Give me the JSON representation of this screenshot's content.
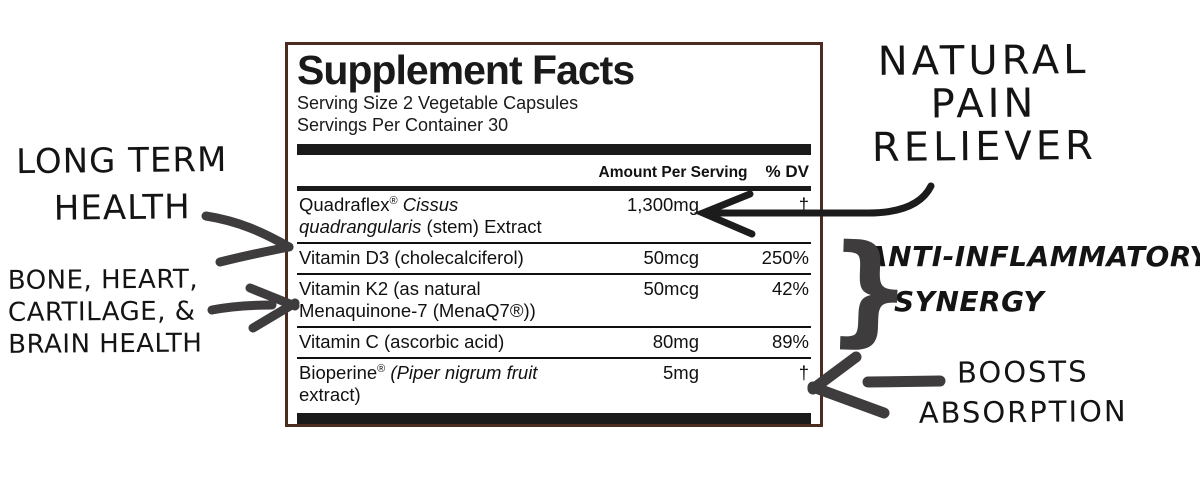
{
  "panel": {
    "title": "Supplement Facts",
    "serving_size": "Serving Size 2 Vegetable Capsules",
    "servings_per_container": "Servings Per Container 30",
    "columns": {
      "amount": "Amount Per Serving",
      "dv": "% DV"
    },
    "rows": [
      {
        "name": [
          {
            "t": "Quadraflex"
          },
          {
            "t": "®",
            "sup": true
          },
          {
            "t": " "
          },
          {
            "t": "Cissus",
            "italic": true
          },
          {
            "br": true
          },
          {
            "t": "quadrangularis",
            "italic": true
          },
          {
            "t": " (stem) Extract"
          }
        ],
        "amount": "1,300mg",
        "dv": "†"
      },
      {
        "name": [
          {
            "t": "Vitamin D3 (cholecalciferol)"
          }
        ],
        "amount": "50mcg",
        "dv": "250%"
      },
      {
        "name": [
          {
            "t": "Vitamin K2 (as natural"
          },
          {
            "br": true
          },
          {
            "t": "Menaquinone-7 (MenaQ7®))"
          }
        ],
        "amount": "50mcg",
        "dv": "42%"
      },
      {
        "name": [
          {
            "t": "Vitamin C (ascorbic acid)"
          }
        ],
        "amount": "80mg",
        "dv": "89%"
      },
      {
        "name": [
          {
            "t": "Bioperine"
          },
          {
            "t": "®",
            "sup": true
          },
          {
            "t": " (",
            "italic": true
          },
          {
            "t": "Piper nigrum fruit",
            "italic": true
          },
          {
            "br": true
          },
          {
            "t": "extract)"
          }
        ],
        "amount": "5mg",
        "dv": "†"
      }
    ]
  },
  "annotations": {
    "long_term_health": {
      "lines": [
        "LONG TERM",
        "HEALTH"
      ]
    },
    "bone_heart": {
      "lines": [
        "BONE, HEART,",
        "CARTILAGE, &",
        "BRAIN HEALTH"
      ]
    },
    "natural_pain": {
      "lines": [
        "NATURAL",
        "PAIN",
        "RELIEVER"
      ]
    },
    "anti_inflammatory": {
      "lines": [
        "ANTI-INFLAMMATORY",
        "SYNERGY"
      ]
    },
    "boosts_absorption": {
      "lines": [
        "BOOSTS",
        "ABSORPTION"
      ]
    }
  },
  "colors": {
    "panel_border": "#4c2b20",
    "label_bar": "#1a1a1a",
    "arrow_gray": "#3e3c3d",
    "arrow_black": "#1c1c1c",
    "ink": "#141414"
  }
}
